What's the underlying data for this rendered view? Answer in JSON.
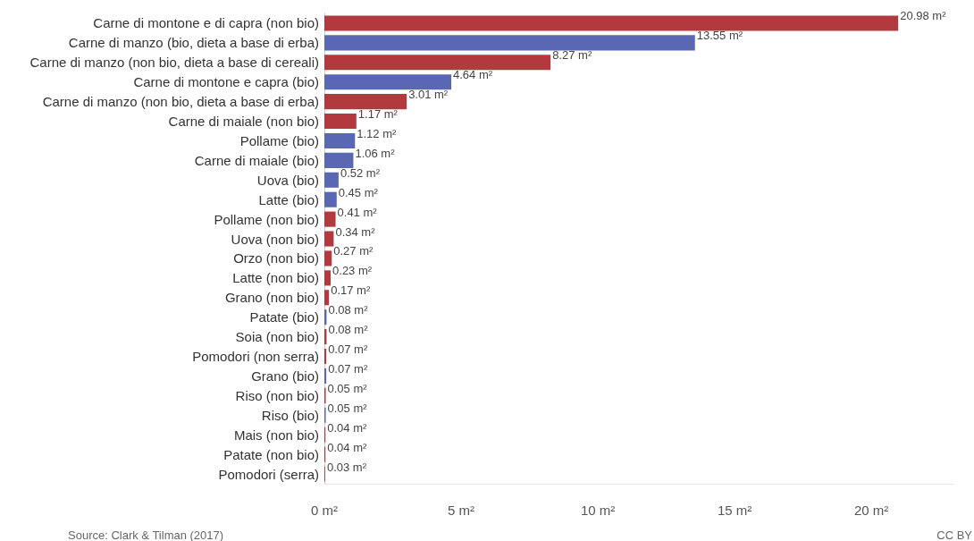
{
  "chart_data": {
    "type": "bar",
    "orientation": "horizontal",
    "categories": [
      "Carne di montone e di capra (non bio)",
      "Carne di manzo (bio, dieta a base di erba)",
      "Carne di manzo (non bio, dieta a base di cereali)",
      "Carne di montone e capra (bio)",
      "Carne di manzo (non bio, dieta a base di erba)",
      "Carne di maiale (non bio)",
      "Pollame (bio)",
      "Carne di maiale (bio)",
      "Uova (bio)",
      "Latte (bio)",
      "Pollame (non bio)",
      "Uova (non bio)",
      "Orzo (non bio)",
      "Latte (non bio)",
      "Grano (non bio)",
      "Patate (bio)",
      "Soia (non bio)",
      "Pomodori (non serra)",
      "Grano (bio)",
      "Riso (non bio)",
      "Riso (bio)",
      "Mais (non bio)",
      "Patate (non bio)",
      "Pomodori (serra)"
    ],
    "values": [
      20.98,
      13.55,
      8.27,
      4.64,
      3.01,
      1.17,
      1.12,
      1.06,
      0.52,
      0.45,
      0.41,
      0.34,
      0.27,
      0.23,
      0.17,
      0.08,
      0.08,
      0.07,
      0.07,
      0.05,
      0.05,
      0.04,
      0.04,
      0.03
    ],
    "colors": [
      "#b23a3e",
      "#5a68b4",
      "#b23a3e",
      "#5a68b4",
      "#b23a3e",
      "#b23a3e",
      "#5a68b4",
      "#5a68b4",
      "#5a68b4",
      "#5a68b4",
      "#b23a3e",
      "#b23a3e",
      "#b23a3e",
      "#b23a3e",
      "#b23a3e",
      "#5a68b4",
      "#b23a3e",
      "#b23a3e",
      "#5a68b4",
      "#b23a3e",
      "#5a68b4",
      "#b23a3e",
      "#b23a3e",
      "#b23a3e"
    ],
    "value_labels": [
      "20.98 m²",
      "13.55 m²",
      "8.27 m²",
      "4.64 m²",
      "3.01 m²",
      "1.17 m²",
      "1.12 m²",
      "1.06 m²",
      "0.52 m²",
      "0.45 m²",
      "0.41 m²",
      "0.34 m²",
      "0.27 m²",
      "0.23 m²",
      "0.17 m²",
      "0.08 m²",
      "0.08 m²",
      "0.07 m²",
      "0.07 m²",
      "0.05 m²",
      "0.05 m²",
      "0.04 m²",
      "0.04 m²",
      "0.03 m²"
    ],
    "xlim": [
      0,
      23
    ],
    "xticks": [
      {
        "value": 0,
        "label": "0 m²"
      },
      {
        "value": 5,
        "label": "5 m²"
      },
      {
        "value": 10,
        "label": "10 m²"
      },
      {
        "value": 15,
        "label": "15 m²"
      },
      {
        "value": 20,
        "label": "20 m²"
      }
    ],
    "grid": false,
    "annotations": [
      "Source: Clark & Tilman (2017)",
      "CC BY"
    ]
  }
}
